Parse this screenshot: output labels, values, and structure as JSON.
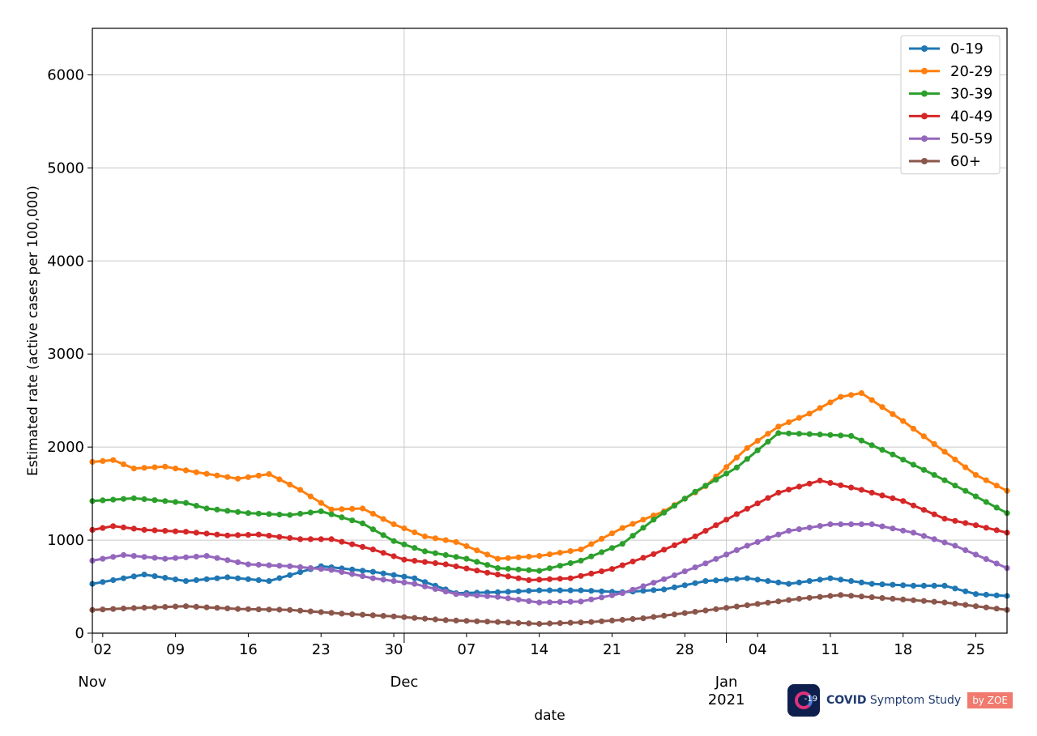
{
  "chart_data": {
    "type": "line",
    "title": "",
    "xlabel": "date",
    "ylabel": "Estimated rate (active cases per 100,000)",
    "x_start": "2020-11-01",
    "x_end": "2021-01-28",
    "ylim": [
      0,
      6500
    ],
    "grid": true,
    "legend_placement": "top-right",
    "y_ticks": [
      "0",
      "1000",
      "2000",
      "3000",
      "4000",
      "5000",
      "6000"
    ],
    "x_ticks": [
      {
        "date": "2020-11-02",
        "label": "02"
      },
      {
        "date": "2020-11-09",
        "label": "09"
      },
      {
        "date": "2020-11-16",
        "label": "16"
      },
      {
        "date": "2020-11-23",
        "label": "23"
      },
      {
        "date": "2020-11-30",
        "label": "30"
      },
      {
        "date": "2020-12-07",
        "label": "07"
      },
      {
        "date": "2020-12-14",
        "label": "14"
      },
      {
        "date": "2020-12-21",
        "label": "21"
      },
      {
        "date": "2020-12-28",
        "label": "28"
      },
      {
        "date": "2021-01-04",
        "label": "04"
      },
      {
        "date": "2021-01-11",
        "label": "11"
      },
      {
        "date": "2021-01-18",
        "label": "18"
      },
      {
        "date": "2021-01-25",
        "label": "25"
      }
    ],
    "month_ticks": [
      {
        "date": "2020-11-01",
        "label": "Nov",
        "year": ""
      },
      {
        "date": "2020-12-01",
        "label": "Dec",
        "year": ""
      },
      {
        "date": "2021-01-01",
        "label": "Jan",
        "year": "2021"
      }
    ],
    "series": [
      {
        "name": "0-19",
        "color": "#1f77b4",
        "points": [
          [
            "2020-11-01",
            530
          ],
          [
            "2020-11-06",
            630
          ],
          [
            "2020-11-10",
            560
          ],
          [
            "2020-11-14",
            600
          ],
          [
            "2020-11-18",
            560
          ],
          [
            "2020-11-23",
            720
          ],
          [
            "2020-11-28",
            660
          ],
          [
            "2020-12-02",
            590
          ],
          [
            "2020-12-06",
            430
          ],
          [
            "2020-12-10",
            440
          ],
          [
            "2020-12-14",
            460
          ],
          [
            "2020-12-18",
            460
          ],
          [
            "2020-12-22",
            440
          ],
          [
            "2020-12-26",
            470
          ],
          [
            "2020-12-30",
            560
          ],
          [
            "2021-01-03",
            590
          ],
          [
            "2021-01-07",
            530
          ],
          [
            "2021-01-11",
            590
          ],
          [
            "2021-01-15",
            530
          ],
          [
            "2021-01-19",
            510
          ],
          [
            "2021-01-22",
            510
          ],
          [
            "2021-01-25",
            420
          ],
          [
            "2021-01-28",
            400
          ]
        ]
      },
      {
        "name": "20-29",
        "color": "#ff7f0e",
        "points": [
          [
            "2020-11-01",
            1840
          ],
          [
            "2020-11-03",
            1860
          ],
          [
            "2020-11-05",
            1770
          ],
          [
            "2020-11-08",
            1790
          ],
          [
            "2020-11-11",
            1730
          ],
          [
            "2020-11-15",
            1660
          ],
          [
            "2020-11-18",
            1710
          ],
          [
            "2020-11-21",
            1540
          ],
          [
            "2020-11-24",
            1330
          ],
          [
            "2020-11-27",
            1340
          ],
          [
            "2020-11-30",
            1170
          ],
          [
            "2020-12-03",
            1040
          ],
          [
            "2020-12-06",
            980
          ],
          [
            "2020-12-10",
            800
          ],
          [
            "2020-12-14",
            830
          ],
          [
            "2020-12-18",
            900
          ],
          [
            "2020-12-22",
            1130
          ],
          [
            "2020-12-26",
            1310
          ],
          [
            "2020-12-30",
            1580
          ],
          [
            "2021-01-03",
            1990
          ],
          [
            "2021-01-06",
            2220
          ],
          [
            "2021-01-09",
            2360
          ],
          [
            "2021-01-12",
            2540
          ],
          [
            "2021-01-14",
            2580
          ],
          [
            "2021-01-18",
            2280
          ],
          [
            "2021-01-22",
            1950
          ],
          [
            "2021-01-25",
            1700
          ],
          [
            "2021-01-28",
            1530
          ]
        ]
      },
      {
        "name": "30-39",
        "color": "#2ca02c",
        "points": [
          [
            "2020-11-01",
            1420
          ],
          [
            "2020-11-05",
            1450
          ],
          [
            "2020-11-10",
            1400
          ],
          [
            "2020-11-12",
            1340
          ],
          [
            "2020-11-16",
            1290
          ],
          [
            "2020-11-20",
            1270
          ],
          [
            "2020-11-23",
            1310
          ],
          [
            "2020-11-27",
            1180
          ],
          [
            "2020-11-30",
            990
          ],
          [
            "2020-12-03",
            880
          ],
          [
            "2020-12-07",
            800
          ],
          [
            "2020-12-10",
            700
          ],
          [
            "2020-12-14",
            670
          ],
          [
            "2020-12-18",
            780
          ],
          [
            "2020-12-22",
            960
          ],
          [
            "2020-12-25",
            1220
          ],
          [
            "2020-12-29",
            1520
          ],
          [
            "2021-01-02",
            1780
          ],
          [
            "2021-01-06",
            2150
          ],
          [
            "2021-01-09",
            2140
          ],
          [
            "2021-01-13",
            2120
          ],
          [
            "2021-01-17",
            1920
          ],
          [
            "2021-01-21",
            1700
          ],
          [
            "2021-01-24",
            1530
          ],
          [
            "2021-01-28",
            1290
          ]
        ]
      },
      {
        "name": "40-49",
        "color": "#d62728",
        "points": [
          [
            "2020-11-01",
            1110
          ],
          [
            "2020-11-03",
            1150
          ],
          [
            "2020-11-06",
            1110
          ],
          [
            "2020-11-10",
            1090
          ],
          [
            "2020-11-14",
            1050
          ],
          [
            "2020-11-17",
            1060
          ],
          [
            "2020-11-21",
            1010
          ],
          [
            "2020-11-24",
            1010
          ],
          [
            "2020-11-28",
            900
          ],
          [
            "2020-12-01",
            790
          ],
          [
            "2020-12-05",
            740
          ],
          [
            "2020-12-09",
            650
          ],
          [
            "2020-12-13",
            570
          ],
          [
            "2020-12-17",
            590
          ],
          [
            "2020-12-21",
            690
          ],
          [
            "2020-12-25",
            850
          ],
          [
            "2020-12-29",
            1040
          ],
          [
            "2021-01-02",
            1280
          ],
          [
            "2021-01-06",
            1510
          ],
          [
            "2021-01-10",
            1640
          ],
          [
            "2021-01-14",
            1540
          ],
          [
            "2021-01-18",
            1420
          ],
          [
            "2021-01-22",
            1230
          ],
          [
            "2021-01-25",
            1160
          ],
          [
            "2021-01-28",
            1080
          ]
        ]
      },
      {
        "name": "50-59",
        "color": "#9467bd",
        "points": [
          [
            "2020-11-01",
            780
          ],
          [
            "2020-11-04",
            840
          ],
          [
            "2020-11-08",
            800
          ],
          [
            "2020-11-12",
            830
          ],
          [
            "2020-11-16",
            740
          ],
          [
            "2020-11-20",
            720
          ],
          [
            "2020-11-24",
            680
          ],
          [
            "2020-11-28",
            590
          ],
          [
            "2020-12-02",
            530
          ],
          [
            "2020-12-06",
            420
          ],
          [
            "2020-12-10",
            390
          ],
          [
            "2020-12-14",
            330
          ],
          [
            "2020-12-18",
            340
          ],
          [
            "2020-12-22",
            430
          ],
          [
            "2020-12-26",
            580
          ],
          [
            "2020-12-30",
            750
          ],
          [
            "2021-01-03",
            940
          ],
          [
            "2021-01-07",
            1100
          ],
          [
            "2021-01-11",
            1170
          ],
          [
            "2021-01-15",
            1170
          ],
          [
            "2021-01-19",
            1080
          ],
          [
            "2021-01-23",
            940
          ],
          [
            "2021-01-28",
            700
          ]
        ]
      },
      {
        "name": "60+",
        "color": "#8c564b",
        "points": [
          [
            "2020-11-01",
            250
          ],
          [
            "2020-11-05",
            270
          ],
          [
            "2020-11-10",
            290
          ],
          [
            "2020-11-15",
            260
          ],
          [
            "2020-11-20",
            250
          ],
          [
            "2020-11-25",
            210
          ],
          [
            "2020-11-30",
            180
          ],
          [
            "2020-12-05",
            140
          ],
          [
            "2020-12-10",
            120
          ],
          [
            "2020-12-14",
            100
          ],
          [
            "2020-12-19",
            120
          ],
          [
            "2020-12-24",
            160
          ],
          [
            "2020-12-29",
            230
          ],
          [
            "2021-01-03",
            300
          ],
          [
            "2021-01-08",
            370
          ],
          [
            "2021-01-12",
            410
          ],
          [
            "2021-01-17",
            370
          ],
          [
            "2021-01-22",
            330
          ],
          [
            "2021-01-28",
            250
          ]
        ]
      }
    ]
  },
  "logo": {
    "badge_number": "-19",
    "brand_bold": "COVID",
    "brand_rest": " Symptom Study",
    "by": "by ZOE"
  }
}
